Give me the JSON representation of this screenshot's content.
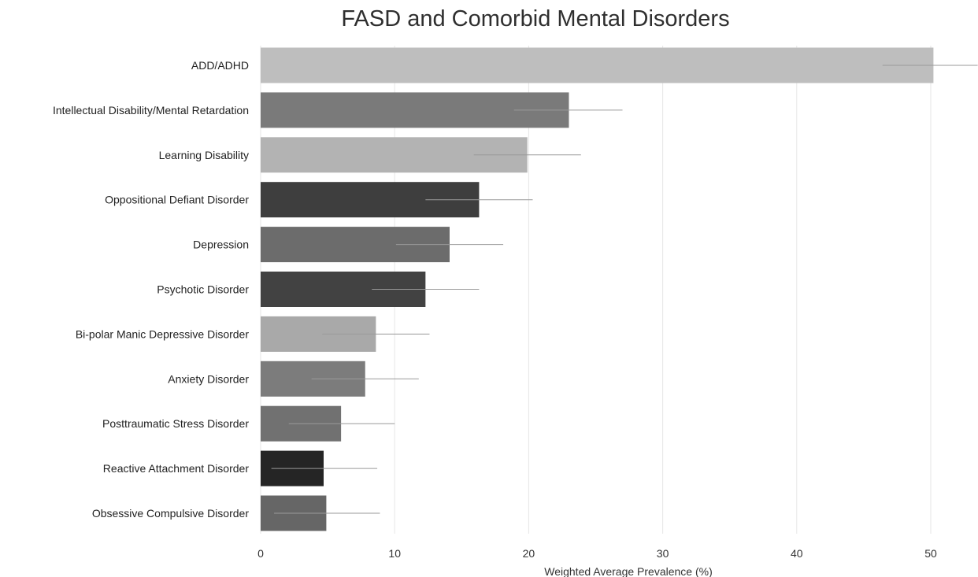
{
  "chart_data": {
    "type": "bar",
    "orientation": "horizontal",
    "title": "FASD and Comorbid Mental Disorders",
    "xlabel": "Weighted Average Prevalence (%)",
    "ylabel": "",
    "xlim": [
      0,
      53
    ],
    "xticks": [
      0,
      10,
      20,
      30,
      40,
      50
    ],
    "grid": true,
    "categories": [
      "ADD/ADHD",
      "Intellectual Disability/Mental Retardation",
      "Learning Disability",
      "Oppositional Defiant Disorder",
      "Depression",
      "Psychotic Disorder",
      "Bi-polar Manic Depressive Disorder",
      "Anxiety Disorder",
      "Posttraumatic Stress Disorder",
      "Reactive Attachment Disorder",
      "Obsessive Compulsive Disorder"
    ],
    "values": [
      50.2,
      23.0,
      19.9,
      16.3,
      14.1,
      12.3,
      8.6,
      7.8,
      6.0,
      4.7,
      4.9
    ],
    "error_low": [
      46.4,
      18.9,
      15.9,
      12.3,
      10.1,
      8.3,
      4.6,
      3.8,
      2.1,
      0.8,
      1.0
    ],
    "error_high": [
      53.5,
      27.0,
      23.9,
      20.3,
      18.1,
      16.3,
      12.6,
      11.8,
      10.0,
      8.7,
      8.9
    ],
    "colors": [
      "#bebebe",
      "#7a7a7a",
      "#b3b3b3",
      "#3e3e3e",
      "#6c6c6c",
      "#424242",
      "#a9a9a9",
      "#7c7c7c",
      "#717171",
      "#252525",
      "#666666"
    ]
  }
}
